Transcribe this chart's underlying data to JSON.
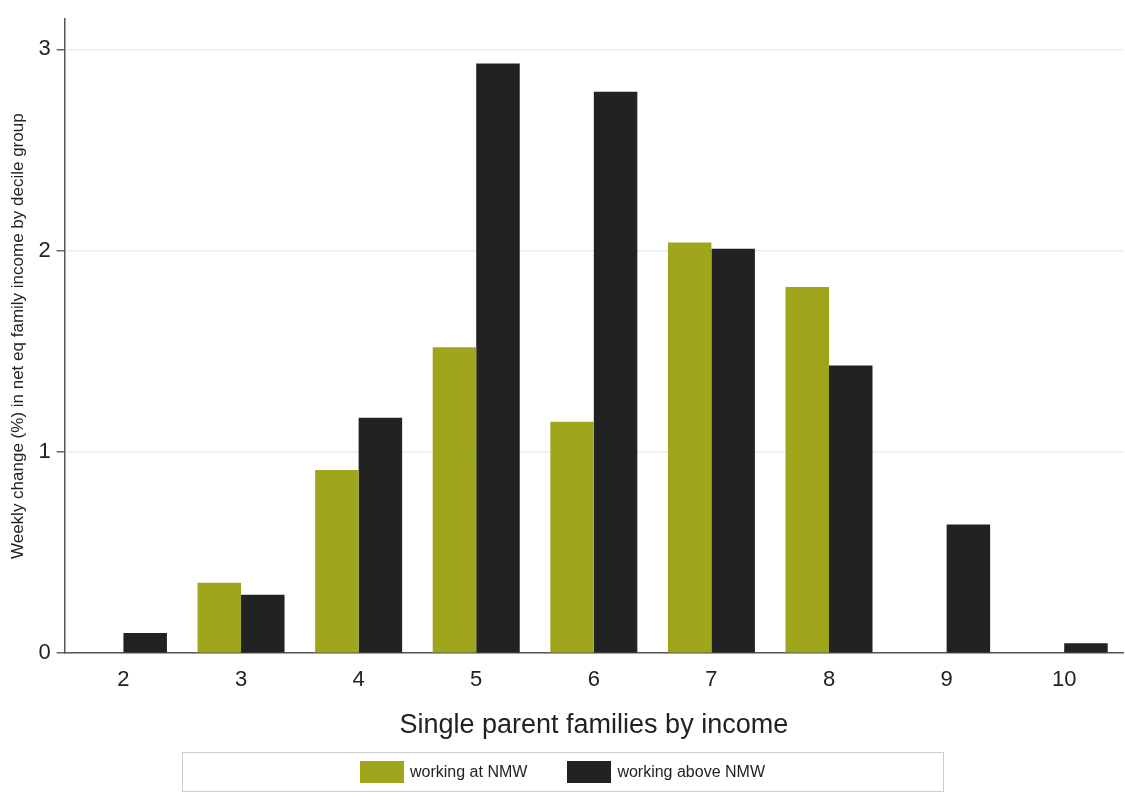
{
  "chart_data": {
    "type": "bar",
    "xlabel": "Single parent families by income",
    "ylabel": "Weekly change (%) in net eq family income by decile group",
    "categories": [
      "2",
      "3",
      "4",
      "5",
      "6",
      "7",
      "8",
      "9",
      "10"
    ],
    "series": [
      {
        "name": "working at NMW",
        "color": "#a0a61c",
        "values": [
          null,
          0.35,
          0.91,
          1.52,
          1.15,
          2.04,
          1.82,
          null,
          null
        ]
      },
      {
        "name": "working above NMW",
        "color": "#222222",
        "values": [
          0.1,
          0.29,
          1.17,
          2.93,
          2.79,
          2.01,
          1.43,
          0.64,
          0.05
        ]
      }
    ],
    "ylim": [
      0,
      3.15
    ],
    "yticks": [
      0,
      1,
      2,
      3
    ],
    "grid": "y",
    "legend": "bottom"
  }
}
